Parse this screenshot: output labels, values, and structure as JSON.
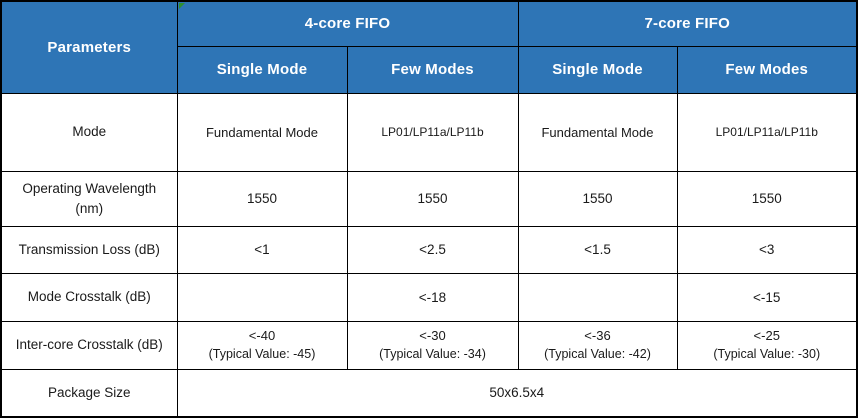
{
  "theme": {
    "header_bg": "#2E75B6",
    "header_text": "#FFFFFF",
    "border_color": "#000000",
    "body_text": "#1A1A1A",
    "corner_marker_green": "#2F8F2F"
  },
  "table": {
    "corner_header": "Parameters",
    "groups": [
      {
        "label": "4-core FIFO"
      },
      {
        "label": "7-core FIFO"
      }
    ],
    "subheaders": [
      "Single Mode",
      "Few Modes",
      "Single Mode",
      "Few Modes"
    ],
    "rows": [
      {
        "param": "Mode",
        "cells": [
          "Fundamental Mode",
          "LP01/LP11a/LP11b",
          "Fundamental Mode",
          "LP01/LP11a/LP11b"
        ]
      },
      {
        "param": "Operating Wavelength (nm)",
        "cells": [
          "1550",
          "1550",
          "1550",
          "1550"
        ]
      },
      {
        "param": "Transmission Loss (dB)",
        "cells": [
          "<1",
          "<2.5",
          "<1.5",
          "<3"
        ]
      },
      {
        "param": "Mode Crosstalk (dB)",
        "cells": [
          "",
          "<-18",
          "",
          "<-15"
        ]
      },
      {
        "param": "Inter-core Crosstalk (dB)",
        "cells": [
          {
            "value": "<-40",
            "note": "(Typical Value: -45)"
          },
          {
            "value": "<-30",
            "note": "(Typical Value: -34)"
          },
          {
            "value": "<-36",
            "note": "(Typical Value: -42)"
          },
          {
            "value": "<-25",
            "note": "(Typical Value: -30)"
          }
        ]
      },
      {
        "param": "Package Size",
        "merged_value": "50x6.5x4"
      }
    ]
  }
}
